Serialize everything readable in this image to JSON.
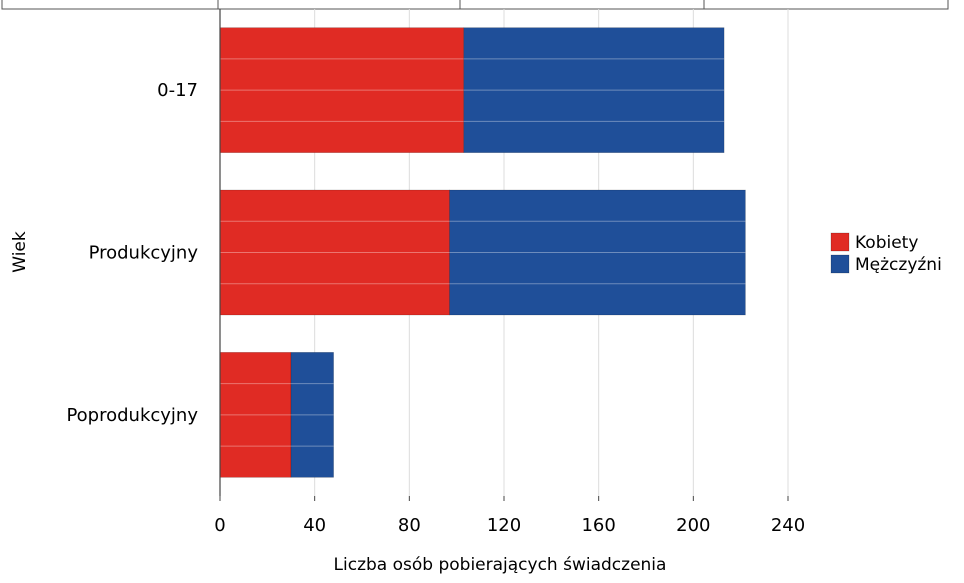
{
  "chart_data": {
    "type": "bar",
    "orientation": "horizontal",
    "stacked": true,
    "categories": [
      "0-17",
      "Produkcyjny",
      "Poprodukcyjny"
    ],
    "series": [
      {
        "name": "Kobiety",
        "values": [
          103,
          97,
          30
        ],
        "color": "#e02b24"
      },
      {
        "name": "Mężczyźni",
        "values": [
          110,
          125,
          18
        ],
        "color": "#1f4f99"
      }
    ],
    "xlabel": "Liczba osób pobierających świadczenia",
    "ylabel": "Wiek",
    "xlim": [
      0,
      240
    ],
    "xticks": [
      "0",
      "40",
      "80",
      "120",
      "160",
      "200",
      "240"
    ],
    "grid": true,
    "legend_position": "right"
  }
}
